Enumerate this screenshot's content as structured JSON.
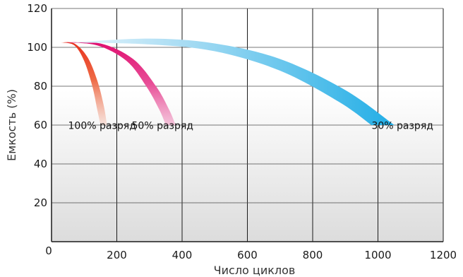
{
  "chart_data": {
    "type": "area",
    "xlabel": "Число циклов",
    "ylabel": "Емкость (%)",
    "xlim": [
      0,
      1200
    ],
    "ylim": [
      0,
      120
    ],
    "x_ticks": [
      0,
      200,
      400,
      600,
      800,
      1000,
      1200
    ],
    "y_ticks": [
      20,
      40,
      60,
      80,
      100,
      120
    ],
    "x_tick_labels": [
      "0",
      "200",
      "400",
      "600",
      "800",
      "1000",
      "1200"
    ],
    "y_tick_labels": [
      "20",
      "40",
      "60",
      "80",
      "100",
      "120"
    ],
    "grid": true,
    "series": [
      {
        "name": "100% разряд",
        "color": "#e8321e",
        "fade_color": "#f5d8cf",
        "upper": [
          [
            30,
            102.5
          ],
          [
            70,
            102
          ],
          [
            110,
            95
          ],
          [
            140,
            83
          ],
          [
            160,
            70
          ],
          [
            170,
            60
          ]
        ],
        "lower": [
          [
            30,
            102.5
          ],
          [
            70,
            101
          ],
          [
            100,
            93
          ],
          [
            125,
            80
          ],
          [
            140,
            68
          ],
          [
            150,
            60
          ]
        ]
      },
      {
        "name": "50% разряд",
        "color": "#e01070",
        "fade_color": "#f2b6d2",
        "upper": [
          [
            40,
            102.5
          ],
          [
            150,
            102
          ],
          [
            250,
            94
          ],
          [
            320,
            80
          ],
          [
            360,
            68
          ],
          [
            380,
            60
          ]
        ],
        "lower": [
          [
            40,
            102.5
          ],
          [
            140,
            101
          ],
          [
            230,
            93
          ],
          [
            290,
            80
          ],
          [
            330,
            68
          ],
          [
            350,
            60
          ]
        ]
      },
      {
        "name": "30% разряд",
        "color": "#3ab6e8",
        "fade_color": "#d8eef8",
        "upper": [
          [
            60,
            102.5
          ],
          [
            300,
            104.5
          ],
          [
            500,
            102
          ],
          [
            700,
            94
          ],
          [
            900,
            78
          ],
          [
            1050,
            60
          ]
        ],
        "lower": [
          [
            60,
            102.5
          ],
          [
            300,
            101.5
          ],
          [
            500,
            98
          ],
          [
            700,
            88
          ],
          [
            880,
            72
          ],
          [
            980,
            60
          ]
        ]
      }
    ]
  }
}
